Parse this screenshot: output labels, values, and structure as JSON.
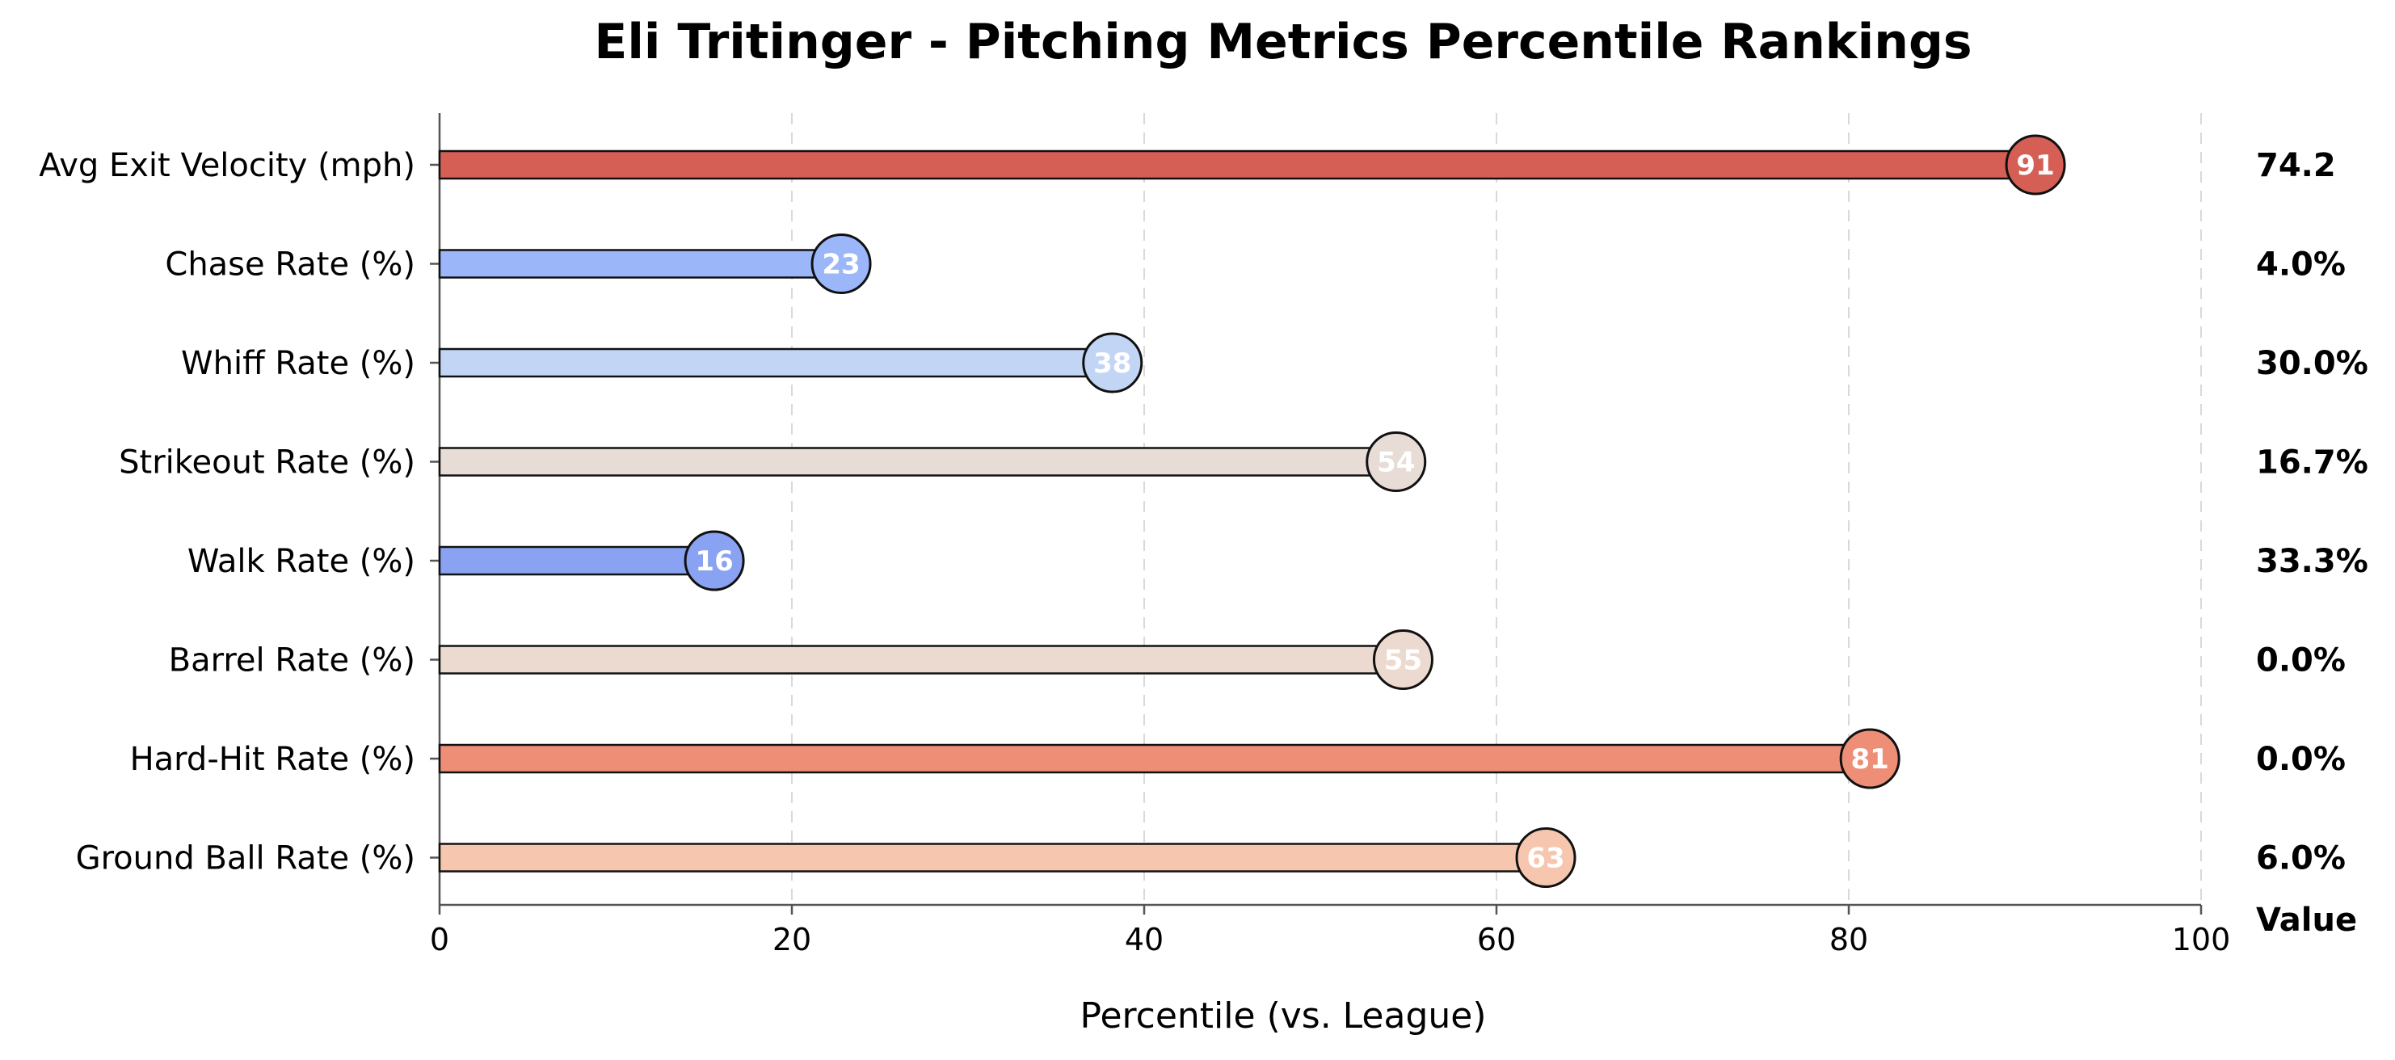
{
  "chart_data": {
    "type": "bar",
    "orientation": "horizontal",
    "title": "Eli Tritinger - Pitching Metrics Percentile Rankings",
    "xlabel": "Percentile (vs. League)",
    "ylabel": "",
    "xlim": [
      0,
      100
    ],
    "xticks": [
      0,
      20,
      40,
      60,
      80,
      100
    ],
    "grid": "vertical-dashed",
    "value_column_header": "Value",
    "categories": [
      "Avg Exit Velocity (mph)",
      "Chase Rate (%)",
      "Whiff Rate (%)",
      "Strikeout Rate (%)",
      "Walk Rate (%)",
      "Barrel Rate (%)",
      "Hard-Hit Rate (%)",
      "Ground Ball Rate (%)"
    ],
    "percentiles": [
      90.6,
      22.8,
      38.2,
      54.3,
      15.6,
      54.7,
      81.2,
      62.8
    ],
    "percentile_labels": [
      "91",
      "23",
      "38",
      "54",
      "16",
      "55",
      "81",
      "63"
    ],
    "values": [
      "74.2",
      "4.0%",
      "30.0%",
      "16.7%",
      "33.3%",
      "0.0%",
      "0.0%",
      "6.0%"
    ],
    "colors": [
      "#d65f55",
      "#9bb7fa",
      "#c3d5f5",
      "#e8ddd6",
      "#8aa2f2",
      "#ecdad0",
      "#ef8e76",
      "#f6c6ae"
    ]
  }
}
